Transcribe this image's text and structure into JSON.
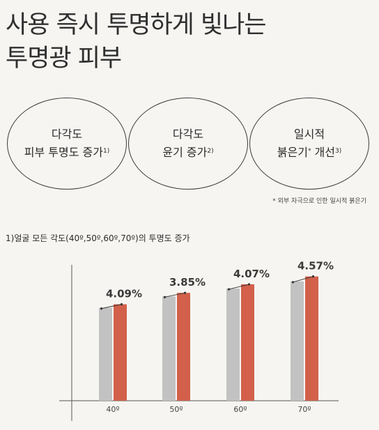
{
  "headline": {
    "line1": "사용 즉시 투명하게 빛나는",
    "line2": "투명광 피부"
  },
  "claims": [
    {
      "line1": "다각도",
      "line2": "피부 투명도 증가",
      "ref": "1)"
    },
    {
      "line1": "다각도",
      "line2": "윤기 증가",
      "ref": "2)"
    },
    {
      "line1": "일시적",
      "line2": "붉은기",
      "mark": "*",
      "line2b": " 개선",
      "ref": "3)"
    }
  ],
  "footnote": "* 외부 자극으로 인한 일시적 붉은기",
  "chart_caption": "1)얼굴 모든 각도(40º,50º,60º,70º)의 투명도 증가",
  "colors": {
    "before": "#c2c2c2",
    "after": "#d2604a",
    "axis": "#555555",
    "background": "#f6f5f2"
  },
  "chart_data": {
    "type": "bar",
    "categories": [
      "40º",
      "50º",
      "60º",
      "70º"
    ],
    "series": [
      {
        "values": [
          130,
          146,
          157,
          167
        ]
      },
      {
        "values": [
          135,
          151,
          163,
          174
        ]
      }
    ],
    "annotations": [
      "4.09%",
      "3.85%",
      "4.07%",
      "4.57%"
    ],
    "ylim": [
      0,
      200
    ],
    "yaxis_labels": false,
    "legend": "none"
  }
}
